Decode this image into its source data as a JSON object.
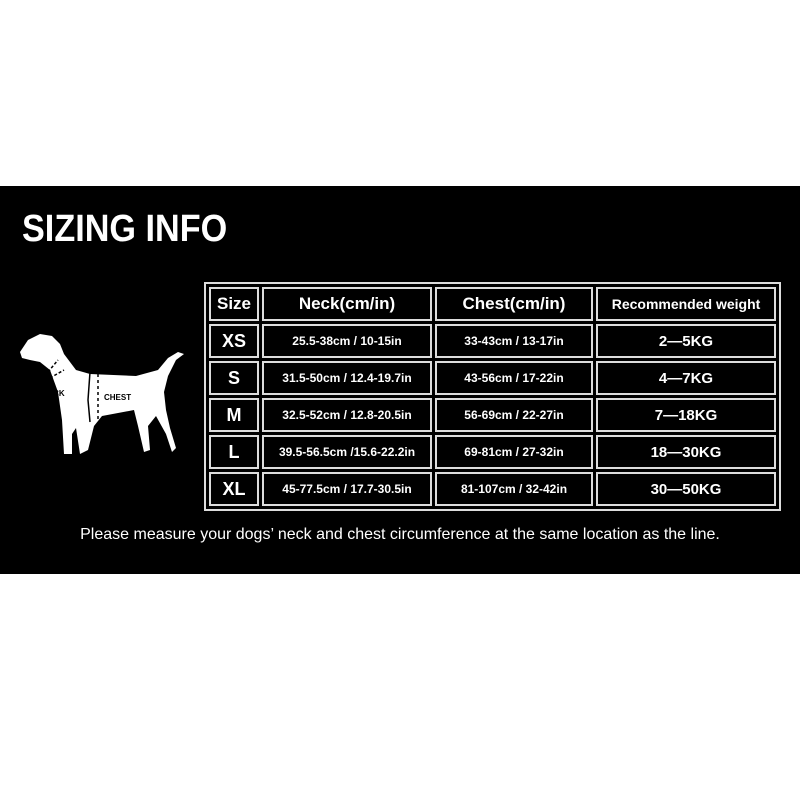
{
  "title": "SIZING INFO",
  "dog": {
    "neck_label": "NECK",
    "chest_label": "CHEST"
  },
  "table": {
    "headers": [
      "Size",
      "Neck(cm/in)",
      "Chest(cm/in)",
      "Recommended weight"
    ],
    "rows": [
      [
        "XS",
        "25.5-38cm / 10-15in",
        "33-43cm / 13-17in",
        "2—5KG"
      ],
      [
        "S",
        "31.5-50cm / 12.4-19.7in",
        "43-56cm / 17-22in",
        "4—7KG"
      ],
      [
        "M",
        "32.5-52cm / 12.8-20.5in",
        "56-69cm / 22-27in",
        "7—18KG"
      ],
      [
        "L",
        "39.5-56.5cm /15.6-22.2in",
        "69-81cm / 27-32in",
        "18—30KG"
      ],
      [
        "XL",
        "45-77.5cm / 17.7-30.5in",
        "81-107cm / 32-42in",
        "30—50KG"
      ]
    ]
  },
  "note": "Please measure your dogs’ neck and chest circumference at the same location as the line."
}
